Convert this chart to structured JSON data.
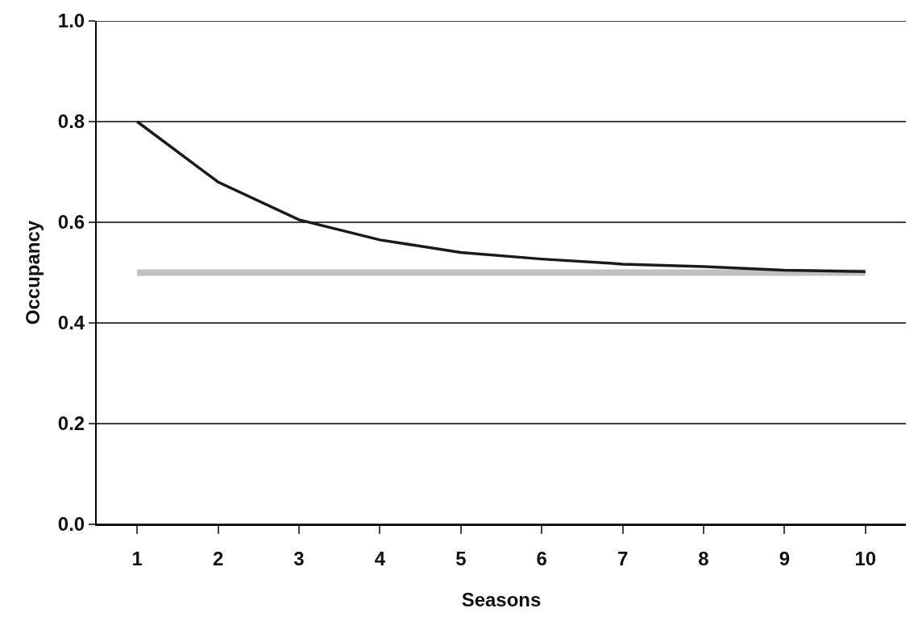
{
  "chart_data": {
    "type": "line",
    "xlabel": "Seasons",
    "ylabel": "Occupancy",
    "categories": [
      "1",
      "2",
      "3",
      "4",
      "5",
      "6",
      "7",
      "8",
      "9",
      "10"
    ],
    "series": [
      {
        "color": "#c0c0c0",
        "values": [
          0.5,
          0.5,
          0.5,
          0.5,
          0.5,
          0.5,
          0.5,
          0.5,
          0.5,
          0.5
        ]
      },
      {
        "color": "#1a1a1a",
        "values": [
          0.8,
          0.68,
          0.605,
          0.565,
          0.54,
          0.527,
          0.517,
          0.512,
          0.505,
          0.502
        ]
      }
    ],
    "ylim": [
      0,
      1
    ],
    "yticks": [
      {
        "value": 0,
        "label": "0.0"
      },
      {
        "value": 0.2,
        "label": "0.2"
      },
      {
        "value": 0.4,
        "label": "0.4"
      },
      {
        "value": 0.6,
        "label": "0.6"
      },
      {
        "value": 0.8,
        "label": "0.8"
      },
      {
        "value": 1,
        "label": "1.0"
      }
    ],
    "grid": "y",
    "marker": "none",
    "line_style": "solid"
  }
}
